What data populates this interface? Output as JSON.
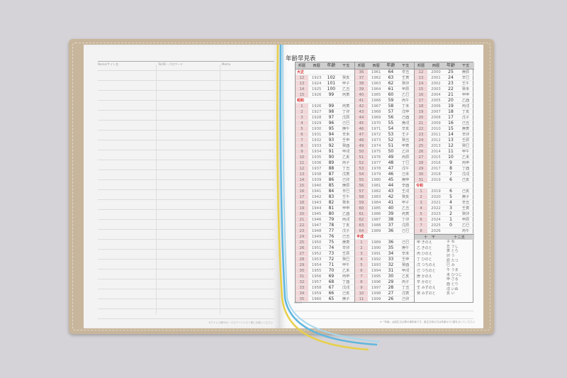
{
  "left_page": {
    "col_name": "Name/サイト名",
    "col_tel": "Tel/ID・パスワード",
    "col_memo": "Memo",
    "footer": "※アドレス帳やID・パスワードリスト等にお使いください"
  },
  "right_page": {
    "title": "年齢早見表",
    "headers": [
      "邦暦",
      "西暦",
      "年齢",
      "干支"
    ],
    "columns": [
      [
        {
          "era": "大正"
        },
        [
          "12",
          "1923",
          "102",
          "癸亥"
        ],
        [
          "13",
          "1924",
          "101",
          "甲子"
        ],
        [
          "14",
          "1925",
          "100",
          "乙丑"
        ],
        [
          "15",
          "1926",
          "99",
          "丙寅"
        ],
        {
          "era": "昭和"
        },
        [
          "1",
          "1926",
          "99",
          "丙寅"
        ],
        [
          "2",
          "1927",
          "98",
          "丁卯"
        ],
        [
          "3",
          "1928",
          "97",
          "戊辰"
        ],
        [
          "4",
          "1929",
          "96",
          "己巳"
        ],
        [
          "5",
          "1930",
          "95",
          "庚午"
        ],
        [
          "6",
          "1931",
          "94",
          "辛未"
        ],
        [
          "7",
          "1932",
          "93",
          "壬申"
        ],
        [
          "8",
          "1933",
          "92",
          "癸酉"
        ],
        [
          "9",
          "1934",
          "91",
          "甲戌"
        ],
        [
          "10",
          "1935",
          "90",
          "乙亥"
        ],
        [
          "11",
          "1936",
          "89",
          "丙子"
        ],
        [
          "12",
          "1937",
          "88",
          "丁丑"
        ],
        [
          "13",
          "1938",
          "87",
          "戊寅"
        ],
        [
          "14",
          "1939",
          "86",
          "己卯"
        ],
        [
          "15",
          "1940",
          "85",
          "庚辰"
        ],
        [
          "16",
          "1941",
          "84",
          "辛巳"
        ],
        [
          "17",
          "1942",
          "83",
          "壬午"
        ],
        [
          "18",
          "1943",
          "82",
          "癸未"
        ],
        [
          "19",
          "1944",
          "81",
          "甲申"
        ],
        [
          "20",
          "1945",
          "80",
          "乙酉"
        ],
        [
          "21",
          "1946",
          "79",
          "丙戌"
        ],
        [
          "22",
          "1947",
          "78",
          "丁亥"
        ],
        [
          "23",
          "1948",
          "77",
          "戊子"
        ],
        [
          "24",
          "1949",
          "76",
          "己丑"
        ],
        [
          "25",
          "1950",
          "75",
          "庚寅"
        ],
        [
          "26",
          "1951",
          "74",
          "辛卯"
        ],
        [
          "27",
          "1952",
          "73",
          "壬辰"
        ],
        [
          "28",
          "1953",
          "72",
          "癸巳"
        ],
        [
          "29",
          "1954",
          "71",
          "甲午"
        ],
        [
          "30",
          "1955",
          "70",
          "乙未"
        ],
        [
          "31",
          "1956",
          "69",
          "丙申"
        ],
        [
          "32",
          "1957",
          "68",
          "丁酉"
        ],
        [
          "33",
          "1958",
          "67",
          "戊戌"
        ],
        [
          "34",
          "1959",
          "66",
          "己亥"
        ],
        [
          "35",
          "1960",
          "65",
          "庚子"
        ]
      ],
      [
        [
          "36",
          "1961",
          "64",
          "辛丑"
        ],
        [
          "37",
          "1962",
          "63",
          "壬寅"
        ],
        [
          "38",
          "1963",
          "62",
          "癸卯"
        ],
        [
          "39",
          "1964",
          "61",
          "甲辰"
        ],
        [
          "40",
          "1965",
          "60",
          "乙巳"
        ],
        [
          "41",
          "1966",
          "59",
          "丙午"
        ],
        [
          "42",
          "1967",
          "58",
          "丁未"
        ],
        [
          "43",
          "1968",
          "57",
          "戊申"
        ],
        [
          "44",
          "1969",
          "56",
          "己酉"
        ],
        [
          "45",
          "1970",
          "55",
          "庚戌"
        ],
        [
          "46",
          "1971",
          "54",
          "辛亥"
        ],
        [
          "47",
          "1972",
          "53",
          "壬子"
        ],
        [
          "48",
          "1973",
          "52",
          "癸丑"
        ],
        [
          "49",
          "1974",
          "51",
          "甲寅"
        ],
        [
          "50",
          "1975",
          "50",
          "乙卯"
        ],
        [
          "51",
          "1976",
          "49",
          "丙辰"
        ],
        [
          "52",
          "1977",
          "48",
          "丁巳"
        ],
        [
          "53",
          "1978",
          "47",
          "戊午"
        ],
        [
          "54",
          "1979",
          "46",
          "己未"
        ],
        [
          "55",
          "1980",
          "45",
          "庚申"
        ],
        [
          "56",
          "1981",
          "44",
          "辛酉"
        ],
        [
          "57",
          "1982",
          "43",
          "壬戌"
        ],
        [
          "58",
          "1983",
          "42",
          "癸亥"
        ],
        [
          "59",
          "1984",
          "41",
          "甲子"
        ],
        [
          "60",
          "1985",
          "40",
          "乙丑"
        ],
        [
          "61",
          "1986",
          "39",
          "丙寅"
        ],
        [
          "62",
          "1987",
          "38",
          "丁卯"
        ],
        [
          "63",
          "1988",
          "37",
          "戊辰"
        ],
        [
          "64",
          "1989",
          "36",
          "己巳"
        ],
        {
          "era": "平成"
        },
        [
          "1",
          "1989",
          "36",
          "己巳"
        ],
        [
          "2",
          "1990",
          "35",
          "庚午"
        ],
        [
          "3",
          "1991",
          "34",
          "辛未"
        ],
        [
          "4",
          "1992",
          "33",
          "壬申"
        ],
        [
          "5",
          "1993",
          "32",
          "癸酉"
        ],
        [
          "6",
          "1994",
          "31",
          "甲戌"
        ],
        [
          "7",
          "1995",
          "30",
          "乙亥"
        ],
        [
          "8",
          "1996",
          "29",
          "丙子"
        ],
        [
          "9",
          "1997",
          "28",
          "丁丑"
        ],
        [
          "10",
          "1998",
          "27",
          "戊寅"
        ],
        [
          "11",
          "1999",
          "26",
          "己卯"
        ]
      ],
      [
        [
          "12",
          "2000",
          "25",
          "庚辰"
        ],
        [
          "13",
          "2001",
          "24",
          "辛巳"
        ],
        [
          "14",
          "2002",
          "23",
          "壬午"
        ],
        [
          "15",
          "2003",
          "22",
          "癸未"
        ],
        [
          "16",
          "2004",
          "21",
          "甲申"
        ],
        [
          "17",
          "2005",
          "20",
          "乙酉"
        ],
        [
          "18",
          "2006",
          "19",
          "丙戌"
        ],
        [
          "19",
          "2007",
          "18",
          "丁亥"
        ],
        [
          "20",
          "2008",
          "17",
          "戊子"
        ],
        [
          "21",
          "2009",
          "16",
          "己丑"
        ],
        [
          "22",
          "2010",
          "15",
          "庚寅"
        ],
        [
          "23",
          "2011",
          "14",
          "辛卯"
        ],
        [
          "24",
          "2012",
          "13",
          "壬辰"
        ],
        [
          "25",
          "2013",
          "12",
          "癸巳"
        ],
        [
          "26",
          "2014",
          "11",
          "甲午"
        ],
        [
          "27",
          "2015",
          "10",
          "乙未"
        ],
        [
          "28",
          "2016",
          "9",
          "丙申"
        ],
        [
          "29",
          "2017",
          "8",
          "丁酉"
        ],
        [
          "30",
          "2018",
          "7",
          "戊戌"
        ],
        [
          "31",
          "2019",
          "6",
          "己亥"
        ],
        {
          "era": "令和"
        },
        [
          "1",
          "2019",
          "6",
          "己亥"
        ],
        [
          "2",
          "2020",
          "5",
          "庚子"
        ],
        [
          "3",
          "2021",
          "4",
          "辛丑"
        ],
        [
          "4",
          "2022",
          "3",
          "壬寅"
        ],
        [
          "5",
          "2023",
          "2",
          "癸卯"
        ],
        [
          "6",
          "2024",
          "1",
          "甲辰"
        ],
        [
          "7",
          "2025",
          "0",
          "乙巳"
        ],
        [
          "8",
          "2026",
          "",
          "丙午"
        ]
      ]
    ],
    "jikkan_header": "十　干",
    "junishi_header": "十二支",
    "jikkan": [
      "甲 きのえ",
      "乙 きのと",
      "丙 ひのえ",
      "丁 ひのと",
      "戊 つちのえ",
      "己 つちのと",
      "庚 かのえ",
      "辛 かのと",
      "壬 みずのえ",
      "癸 みずのと"
    ],
    "junishi": [
      "子 ね",
      "丑 うし",
      "寅 とら",
      "卯 う",
      "辰 たつ",
      "巳 み",
      "午 うま",
      "未 ひつじ",
      "申 さる",
      "酉 とり",
      "戌 いぬ",
      "亥 い"
    ],
    "memo": "MEMO",
    "footer": "※「年齢」は誕生日以降の満年齢です。誕生日前の方は年齢から1歳をひいてください"
  },
  "colors": {
    "cover": "#c8b69c",
    "era_shade": "#f2d7d9",
    "era_label": "#dd3333",
    "ribbons": [
      "#e8d04a",
      "#5fb7e0",
      "#a8d8ee"
    ]
  }
}
